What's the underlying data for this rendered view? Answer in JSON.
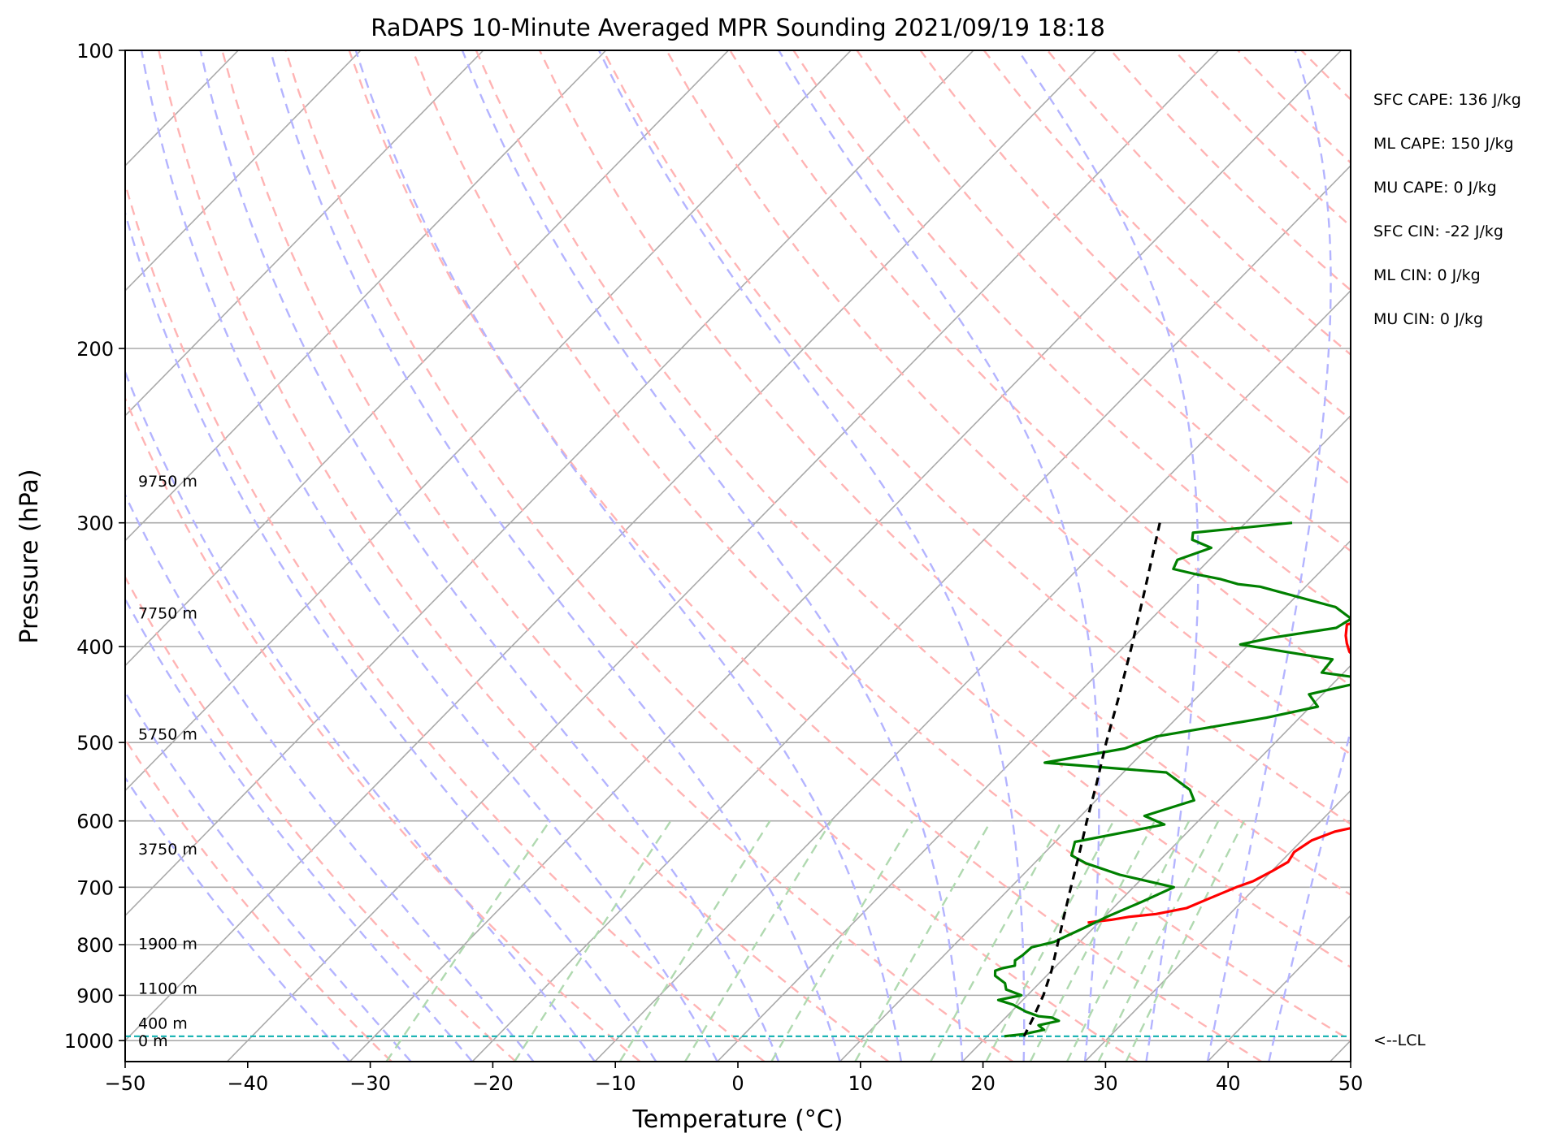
{
  "chart_data": {
    "type": "line",
    "title": "RaDAPS 10-Minute Averaged MPR Sounding 2021/09/19 18:18",
    "xlabel": "Temperature (°C)",
    "ylabel": "Pressure (hPa)",
    "x_scale": "skew-T (isotherms skewed)",
    "y_scale": "log",
    "xlim": [
      -50,
      50
    ],
    "ylim": [
      1050,
      100
    ],
    "grid": true,
    "x_ticks": [
      "−50",
      "−40",
      "−30",
      "−20",
      "−10",
      "0",
      "10",
      "20",
      "30",
      "40",
      "50"
    ],
    "x_tick_values": [
      -50,
      -40,
      -30,
      -20,
      -10,
      0,
      10,
      20,
      30,
      40,
      50
    ],
    "y_ticks": [
      "100",
      "200",
      "300",
      "400",
      "500",
      "600",
      "700",
      "800",
      "900",
      "1000"
    ],
    "y_tick_values": [
      100,
      200,
      300,
      400,
      500,
      600,
      700,
      800,
      900,
      1000
    ],
    "series": [
      {
        "name": "",
        "role": "temperature",
        "color": "#ff0000",
        "points": [
          [
            16.3,
            300
          ],
          [
            15.8,
            310
          ],
          [
            16.3,
            318
          ],
          [
            19.8,
            330
          ],
          [
            19.0,
            336
          ],
          [
            18.4,
            345
          ],
          [
            18.2,
            350
          ],
          [
            18.4,
            360
          ],
          [
            18.5,
            372
          ],
          [
            17.4,
            376
          ],
          [
            16.4,
            380
          ],
          [
            17.2,
            390
          ],
          [
            17.9,
            397
          ],
          [
            18.8,
            405
          ],
          [
            21.5,
            420
          ],
          [
            24.0,
            435
          ],
          [
            26.0,
            450
          ],
          [
            27.5,
            465
          ],
          [
            28.5,
            480
          ],
          [
            29.0,
            490
          ],
          [
            29.0,
            500
          ],
          [
            29.8,
            505
          ],
          [
            30.0,
            515
          ],
          [
            29.0,
            525
          ],
          [
            30.5,
            532
          ],
          [
            31.8,
            540
          ],
          [
            32.5,
            550
          ],
          [
            32.8,
            558
          ],
          [
            32.8,
            565
          ],
          [
            32.2,
            572
          ],
          [
            32.3,
            580
          ],
          [
            33.3,
            592
          ],
          [
            34.1,
            605
          ],
          [
            32.0,
            615
          ],
          [
            30.8,
            628
          ],
          [
            30.3,
            645
          ],
          [
            30.6,
            660
          ],
          [
            30.0,
            675
          ],
          [
            29.3,
            690
          ],
          [
            28.4,
            700
          ],
          [
            27.0,
            720
          ],
          [
            26.0,
            735
          ],
          [
            24.0,
            745
          ],
          [
            22.0,
            750
          ],
          [
            20.8,
            755
          ],
          [
            19.7,
            758
          ],
          [
            19.1,
            760
          ]
        ]
      },
      {
        "name": "",
        "role": "dewpoint",
        "color": "#008000",
        "points": [
          [
            3.8,
            300
          ],
          [
            -3.5,
            307
          ],
          [
            -3.0,
            312
          ],
          [
            -0.8,
            318
          ],
          [
            -2.6,
            327
          ],
          [
            -2.2,
            334
          ],
          [
            0.0,
            338
          ],
          [
            2.5,
            342
          ],
          [
            4.3,
            346
          ],
          [
            6.3,
            348
          ],
          [
            14.1,
            365
          ],
          [
            16.3,
            375
          ],
          [
            15.8,
            383
          ],
          [
            11.3,
            392
          ],
          [
            9.3,
            398
          ],
          [
            16.7,
            410
          ],
          [
            18.0,
            412
          ],
          [
            18.2,
            425
          ],
          [
            22.9,
            432
          ],
          [
            18.9,
            447
          ],
          [
            20.6,
            460
          ],
          [
            17.3,
            472
          ],
          [
            9.8,
            493
          ],
          [
            8.2,
            507
          ],
          [
            2.8,
            524
          ],
          [
            13.5,
            536
          ],
          [
            16.8,
            558
          ],
          [
            18.0,
            572
          ],
          [
            15.2,
            593
          ],
          [
            17.5,
            605
          ],
          [
            11.6,
            630
          ],
          [
            12.4,
            650
          ],
          [
            14.2,
            662
          ],
          [
            17.9,
            680
          ],
          [
            23.3,
            700
          ],
          [
            21.8,
            725
          ],
          [
            20.2,
            750
          ],
          [
            19.2,
            770
          ],
          [
            18.4,
            785
          ],
          [
            17.9,
            795
          ],
          [
            16.5,
            805
          ],
          [
            16.4,
            820
          ],
          [
            16.2,
            830
          ],
          [
            16.6,
            840
          ],
          [
            15.8,
            845
          ],
          [
            15.4,
            850
          ],
          [
            15.8,
            860
          ],
          [
            17.2,
            875
          ],
          [
            17.8,
            888
          ],
          [
            19.5,
            900
          ],
          [
            18.0,
            910
          ],
          [
            19.6,
            920
          ],
          [
            21.2,
            935
          ],
          [
            22.6,
            945
          ],
          [
            23.8,
            948
          ],
          [
            24.6,
            955
          ],
          [
            23.3,
            965
          ],
          [
            24.1,
            975
          ],
          [
            22.8,
            985
          ],
          [
            21.4,
            990
          ]
        ]
      },
      {
        "name": "",
        "role": "parcel",
        "color": "#000000",
        "style": "dashed",
        "points": [
          [
            -7.0,
            300
          ],
          [
            -2.9,
            350
          ],
          [
            0.6,
            400
          ],
          [
            3.6,
            450
          ],
          [
            6.2,
            500
          ],
          [
            8.7,
            550
          ],
          [
            10.9,
            600
          ],
          [
            13.0,
            650
          ],
          [
            14.9,
            700
          ],
          [
            16.7,
            750
          ],
          [
            18.4,
            800
          ],
          [
            20.0,
            850
          ],
          [
            21.3,
            900
          ],
          [
            22.3,
            950
          ],
          [
            23.0,
            990
          ]
        ]
      }
    ],
    "lcl_pressure": 990,
    "lcl_label": "<--LCL",
    "height_labels": [
      {
        "text": "9750 m",
        "pressure": 272
      },
      {
        "text": "7750 m",
        "pressure": 370
      },
      {
        "text": "5750 m",
        "pressure": 490
      },
      {
        "text": "3750 m",
        "pressure": 640
      },
      {
        "text": "1900 m",
        "pressure": 798
      },
      {
        "text": "1100 m",
        "pressure": 885
      },
      {
        "text": "400 m",
        "pressure": 960
      },
      {
        "text": "0 m",
        "pressure": 1000
      }
    ],
    "indices": [
      "SFC CAPE: 136 J/kg",
      "ML CAPE: 150 J/kg",
      "MU CAPE: 0 J/kg",
      "SFC CIN: -22 J/kg",
      "ML CIN: 0 J/kg",
      "MU CIN: 0 J/kg"
    ],
    "colors": {
      "temperature": "#ff0000",
      "dewpoint": "#008000",
      "parcel": "#000000",
      "lcl": "#1fb5b5",
      "isotherm": "#aaaaaa",
      "dry_adiabat": "#ffb4b4",
      "moist_adiabat": "#b4b4ff",
      "mixing_ratio": "#b0d9b0"
    }
  }
}
